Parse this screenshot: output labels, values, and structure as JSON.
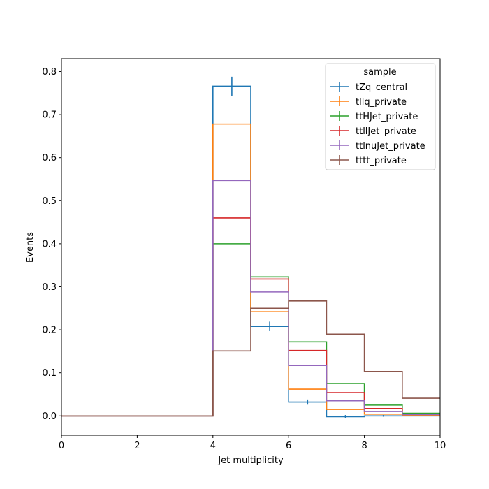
{
  "chart_data": {
    "type": "histogram-step",
    "xlabel": "Jet multiplicity",
    "ylabel": "Events",
    "xlim": [
      0,
      10
    ],
    "ylim": [
      -0.045,
      0.83
    ],
    "xticks": [
      "0",
      "2",
      "4",
      "6",
      "8",
      "10"
    ],
    "yticks": [
      "0.0",
      "0.1",
      "0.2",
      "0.3",
      "0.4",
      "0.5",
      "0.6",
      "0.7",
      "0.8"
    ],
    "grid": false,
    "legend": {
      "title": "sample",
      "placement": "top-right"
    },
    "bin_edges": [
      0,
      1,
      2,
      3,
      4,
      5,
      6,
      7,
      8,
      9,
      10
    ],
    "series": [
      {
        "name": "tZq_central",
        "color": "#1f77b4",
        "values": [
          0,
          0,
          0,
          0,
          0.766,
          0.208,
          0.032,
          -0.002,
          0.0,
          0.0
        ],
        "errors": [
          0,
          0,
          0,
          0,
          0.022,
          0.011,
          0.006,
          0.004,
          0.002,
          0.0
        ]
      },
      {
        "name": "tllq_private",
        "color": "#ff7f0e",
        "values": [
          0,
          0,
          0,
          0,
          0.678,
          0.242,
          0.062,
          0.015,
          0.004,
          0.001
        ],
        "errors": [
          0,
          0,
          0,
          0,
          0,
          0,
          0,
          0,
          0,
          0
        ]
      },
      {
        "name": "ttHJet_private",
        "color": "#2ca02c",
        "values": [
          0,
          0,
          0,
          0,
          0.4,
          0.323,
          0.172,
          0.075,
          0.025,
          0.006
        ],
        "errors": [
          0,
          0,
          0,
          0,
          0,
          0,
          0,
          0,
          0,
          0
        ]
      },
      {
        "name": "ttllJet_private",
        "color": "#d62728",
        "values": [
          0,
          0,
          0,
          0,
          0.46,
          0.318,
          0.152,
          0.054,
          0.017,
          0.004
        ],
        "errors": [
          0,
          0,
          0,
          0,
          0,
          0,
          0,
          0,
          0,
          0
        ]
      },
      {
        "name": "ttlnuJet_private",
        "color": "#9467bd",
        "values": [
          0,
          0,
          0,
          0,
          0.547,
          0.288,
          0.117,
          0.035,
          0.01,
          0.003
        ],
        "errors": [
          0,
          0,
          0,
          0,
          0,
          0,
          0,
          0,
          0,
          0
        ]
      },
      {
        "name": "tttt_private",
        "color": "#8c564b",
        "values": [
          0,
          0,
          0,
          0,
          0.151,
          0.25,
          0.267,
          0.19,
          0.103,
          0.041
        ],
        "errors": [
          0,
          0,
          0,
          0,
          0,
          0,
          0,
          0,
          0,
          0
        ]
      }
    ]
  }
}
